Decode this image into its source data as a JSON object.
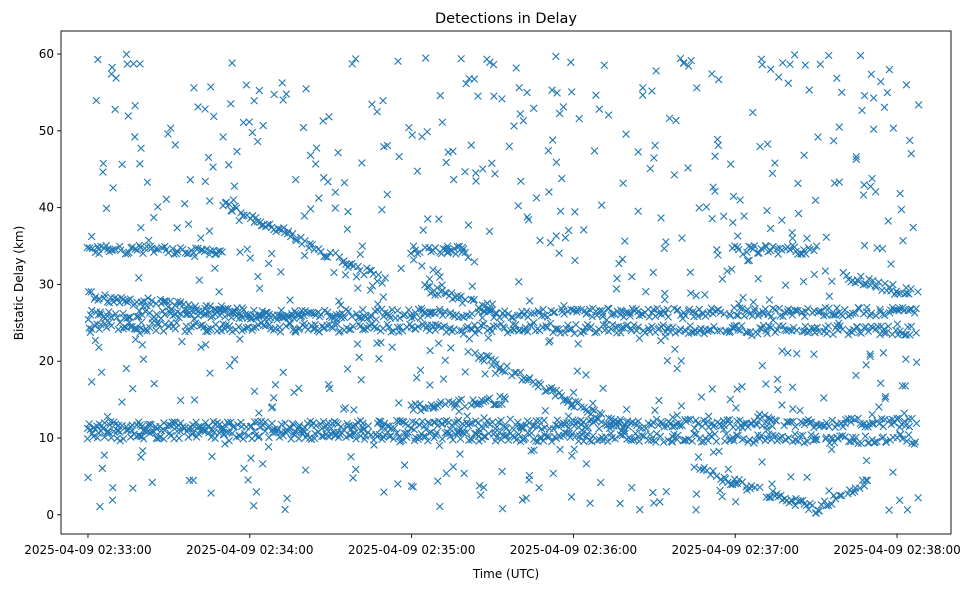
{
  "chart_data": {
    "type": "scatter",
    "title": "Detections in Delay",
    "xlabel": "Time (UTC)",
    "ylabel": "Bistatic Delay (km)",
    "x_is_time": true,
    "xlim": [
      "2025-04-09 02:32:50",
      "2025-04-09 02:38:20"
    ],
    "ylim": [
      -2.5,
      63
    ],
    "x_ticks": [
      "2025-04-09 02:33:00",
      "2025-04-09 02:34:00",
      "2025-04-09 02:35:00",
      "2025-04-09 02:36:00",
      "2025-04-09 02:37:00",
      "2025-04-09 02:38:00"
    ],
    "y_ticks": [
      0,
      10,
      20,
      30,
      40,
      50,
      60
    ],
    "grid": false,
    "marker": "x",
    "color": "#1f77b4",
    "tracks": [
      {
        "start": "2025-04-09 02:33:50",
        "end": "2025-04-09 02:34:50",
        "y_start": 40.5,
        "y_end": 30.5
      },
      {
        "start": "2025-04-09 02:35:05",
        "end": "2025-04-09 02:35:30",
        "y_start": 29.5,
        "y_end": 27.0
      },
      {
        "start": "2025-04-09 02:35:25",
        "end": "2025-04-09 02:36:20",
        "y_start": 20.8,
        "y_end": 11.0
      },
      {
        "start": "2025-04-09 02:36:45",
        "end": "2025-04-09 02:37:30",
        "y_start": 6.0,
        "y_end": 0.8
      },
      {
        "start": "2025-04-09 02:37:30",
        "end": "2025-04-09 02:37:50",
        "y_start": 0.8,
        "y_end": 4.5
      },
      {
        "start": "2025-04-09 02:33:00",
        "end": "2025-04-09 02:38:07",
        "y_start": 11.5,
        "y_end": 12.0
      },
      {
        "start": "2025-04-09 02:33:00",
        "end": "2025-04-09 02:38:07",
        "y_start": 10.5,
        "y_end": 9.8
      },
      {
        "start": "2025-04-09 02:33:00",
        "end": "2025-04-09 02:38:07",
        "y_start": 26.0,
        "y_end": 26.5
      },
      {
        "start": "2025-04-09 02:33:00",
        "end": "2025-04-09 02:38:07",
        "y_start": 24.5,
        "y_end": 24.0
      },
      {
        "start": "2025-04-09 02:33:00",
        "end": "2025-04-09 02:34:20",
        "y_start": 28.5,
        "y_end": 25.5
      },
      {
        "start": "2025-04-09 02:33:00",
        "end": "2025-04-09 02:33:50",
        "y_start": 34.5,
        "y_end": 34.5
      },
      {
        "start": "2025-04-09 02:35:00",
        "end": "2025-04-09 02:35:20",
        "y_start": 34.5,
        "y_end": 34.5
      },
      {
        "start": "2025-04-09 02:37:00",
        "end": "2025-04-09 02:37:30",
        "y_start": 34.5,
        "y_end": 34.5
      },
      {
        "start": "2025-04-09 02:37:40",
        "end": "2025-04-09 02:38:05",
        "y_start": 31.0,
        "y_end": 29.0
      },
      {
        "start": "2025-04-09 02:35:00",
        "end": "2025-04-09 02:35:35",
        "y_start": 14.0,
        "y_end": 15.0
      }
    ]
  }
}
